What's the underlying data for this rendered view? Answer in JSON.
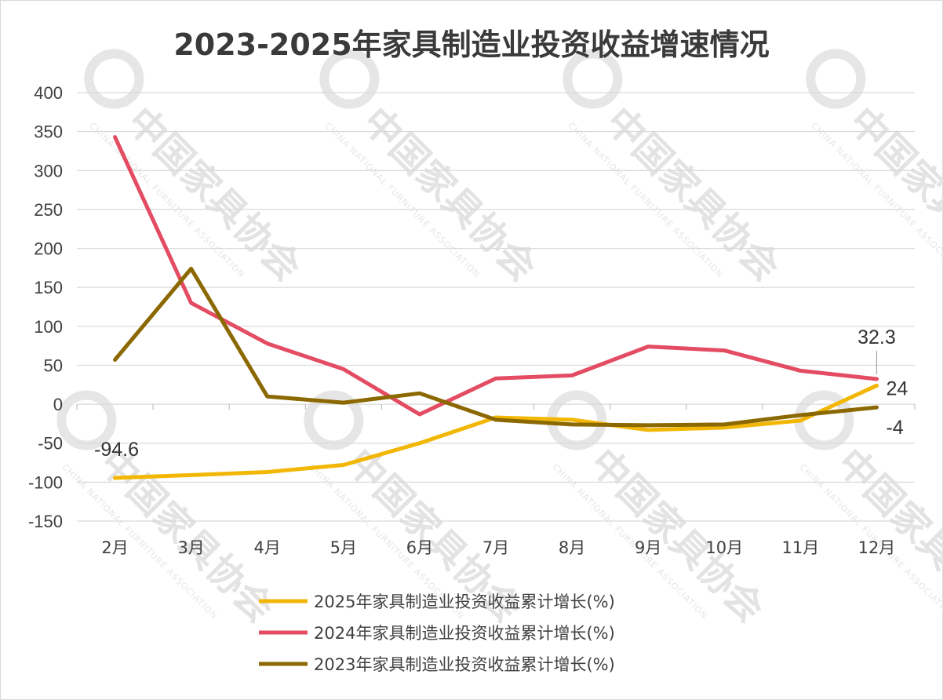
{
  "chart_data": {
    "type": "line",
    "title": "2023-2025年家具制造业投资收益增速情况",
    "categories": [
      "2月",
      "3月",
      "4月",
      "5月",
      "6月",
      "7月",
      "8月",
      "9月",
      "10月",
      "11月",
      "12月"
    ],
    "ylim": [
      -150,
      400
    ],
    "yticks": [
      400,
      350,
      300,
      250,
      200,
      150,
      100,
      50,
      0,
      -50,
      -100,
      -150
    ],
    "grid": true,
    "legend_position": "bottom",
    "series": [
      {
        "name": "2025年家具制造业投资收益累计增长(%)",
        "color": "#F2B705",
        "values": [
          -94.6,
          -91,
          -87,
          -78,
          -50,
          -17,
          -20,
          -33,
          -30,
          -21,
          24
        ]
      },
      {
        "name": "2024年家具制造业投资收益累计增长(%)",
        "color": "#E34C62",
        "values": [
          343,
          130,
          78,
          45,
          -13,
          33,
          37,
          74,
          69,
          43,
          32.3
        ]
      },
      {
        "name": "2023年家具制造业投资收益累计增长(%)",
        "color": "#8B6800",
        "values": [
          57,
          174,
          10,
          2,
          14,
          -20,
          -26,
          -27,
          -26,
          -14,
          -4
        ]
      }
    ],
    "data_labels": [
      {
        "series": 0,
        "index": 0,
        "text": "-94.6"
      },
      {
        "series": 1,
        "index": 10,
        "text": "32.3"
      },
      {
        "series": 0,
        "index": 10,
        "text": "24"
      },
      {
        "series": 2,
        "index": 10,
        "text": "-4"
      }
    ]
  },
  "watermark": {
    "cn": "中国家具协会",
    "en": "CHINA NATIONAL FURNITURE ASSOCIATION"
  }
}
